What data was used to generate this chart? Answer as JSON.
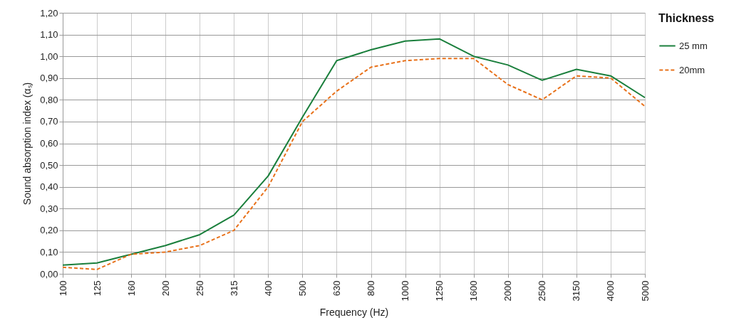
{
  "chart_data": {
    "type": "line",
    "xlabel": "Frequency (Hz)",
    "ylabel": "Sound absorption index (αₛ)",
    "legend_title": "Thickness",
    "legend": "right",
    "grid": true,
    "categories": [
      "100",
      "125",
      "160",
      "200",
      "250",
      "315",
      "400",
      "500",
      "630",
      "800",
      "1000",
      "1250",
      "1600",
      "2000",
      "2500",
      "3150",
      "4000",
      "5000"
    ],
    "ylim": [
      0,
      1.2
    ],
    "yticks": [
      {
        "value": 0,
        "label": "0,00"
      },
      {
        "value": 0.1,
        "label": "0,10"
      },
      {
        "value": 0.2,
        "label": "0,20"
      },
      {
        "value": 0.3,
        "label": "0,30"
      },
      {
        "value": 0.4,
        "label": "0,40"
      },
      {
        "value": 0.5,
        "label": "0,50"
      },
      {
        "value": 0.6,
        "label": "0,60"
      },
      {
        "value": 0.7,
        "label": "0,70"
      },
      {
        "value": 0.8,
        "label": "0,80"
      },
      {
        "value": 0.9,
        "label": "0,90"
      },
      {
        "value": 1.0,
        "label": "1,00"
      },
      {
        "value": 1.1,
        "label": "1,10"
      },
      {
        "value": 1.2,
        "label": "1,20"
      }
    ],
    "series": [
      {
        "name": "25 mm",
        "color": "#1a7f3c",
        "line_style": "solid",
        "values": [
          0.04,
          0.05,
          0.09,
          0.13,
          0.18,
          0.27,
          0.45,
          0.72,
          0.98,
          1.03,
          1.07,
          1.08,
          1.0,
          0.96,
          0.89,
          0.94,
          0.91,
          0.81
        ]
      },
      {
        "name": "20mm",
        "color": "#e8711a",
        "line_style": "dashed",
        "values": [
          0.03,
          0.02,
          0.09,
          0.1,
          0.13,
          0.2,
          0.4,
          0.7,
          0.84,
          0.95,
          0.98,
          0.99,
          0.99,
          0.87,
          0.8,
          0.91,
          0.9,
          0.77
        ]
      }
    ]
  }
}
